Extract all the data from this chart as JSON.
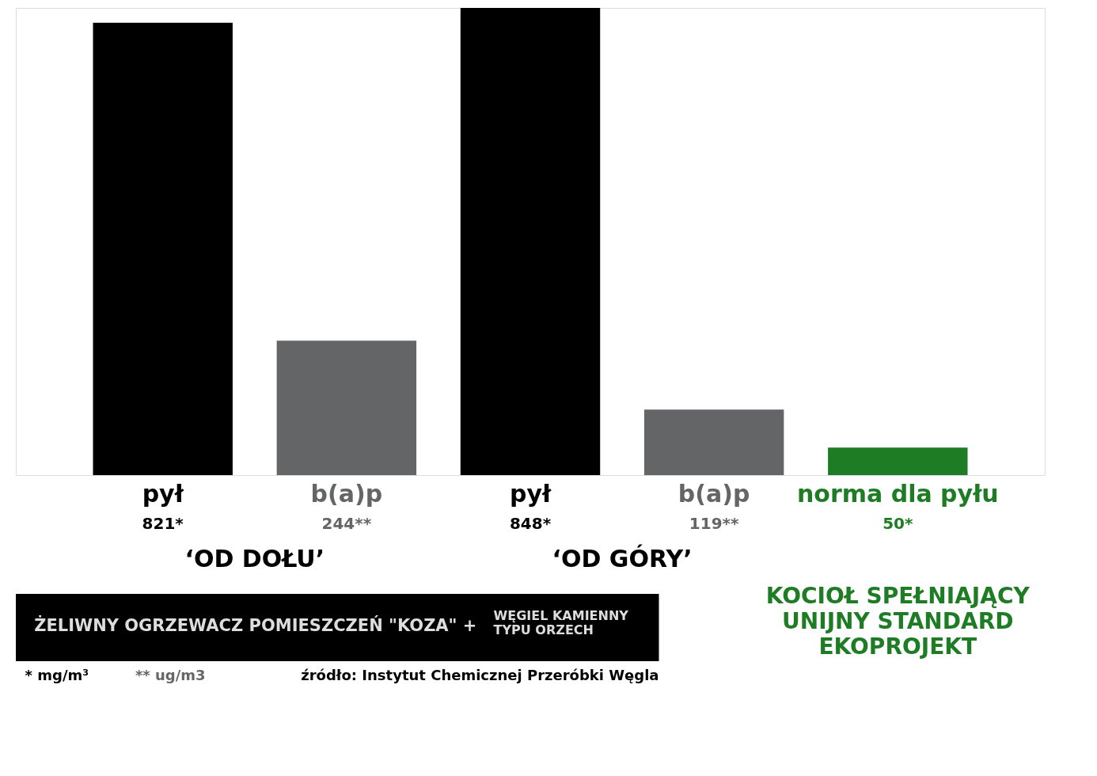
{
  "chart_data": {
    "type": "bar",
    "categories": [
      "pył",
      "b(a)p",
      "pył",
      "b(a)p",
      "norma dla pyłu"
    ],
    "values": [
      821,
      244,
      848,
      119,
      50
    ],
    "colors": [
      "#000000",
      "#646567",
      "#000000",
      "#646567",
      "#1e7d24"
    ],
    "value_labels": [
      "821*",
      "244**",
      "848*",
      "119**",
      "50*"
    ],
    "annotations": [
      "‘OD DOŁU’",
      "‘OD GÓRY’",
      "ŻELIWNY OGRZEWACZ POMIESZCZEŃ \"KOZA\" +",
      "WĘGIEL KAMIENNY\nTYPU ORZECH",
      "KOCIOŁ SPEŁNIAJĄCY\nUNIJNY STANDARD\nEKOPROJEKT",
      "* mg/m³",
      "** ug/m3",
      "źródło: Instytut Chemicznej Przeróbki Węgla"
    ],
    "legend": false
  }
}
